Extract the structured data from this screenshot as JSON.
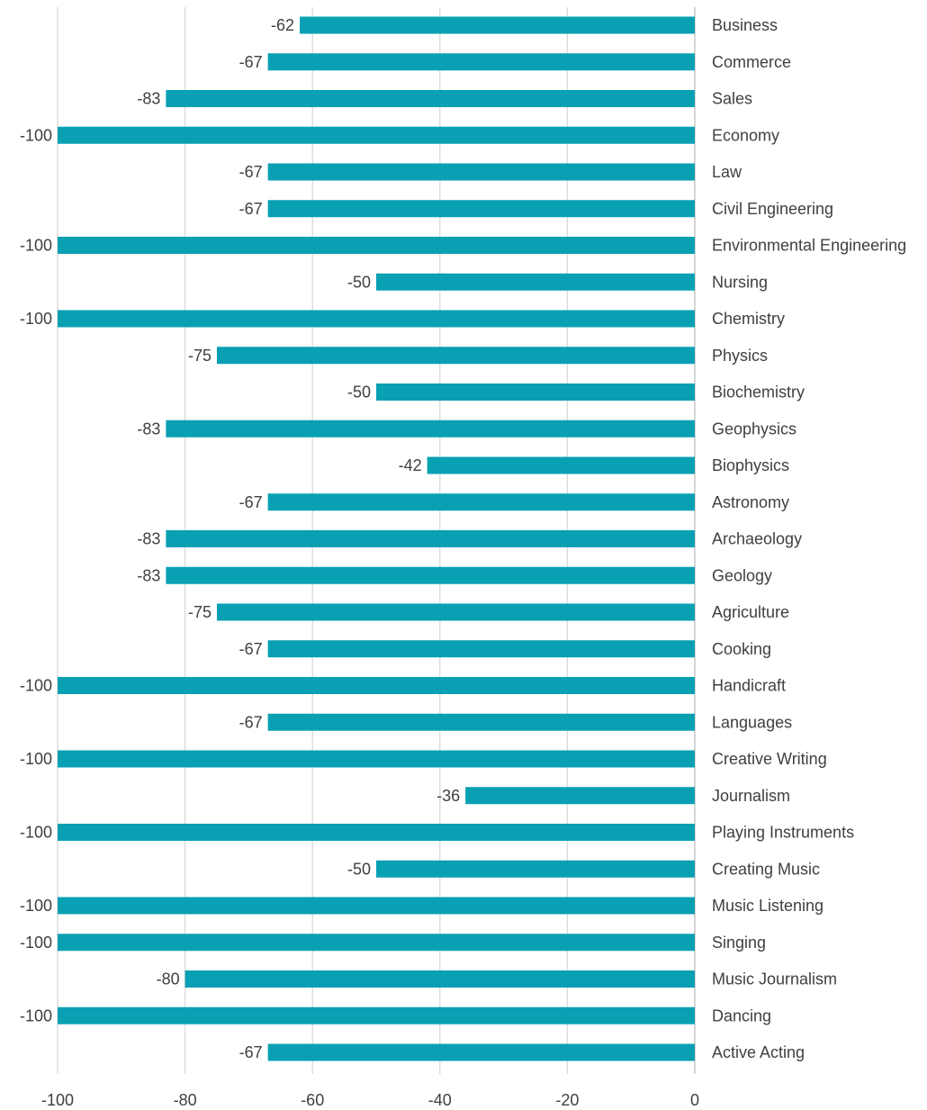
{
  "chart_data": {
    "type": "bar",
    "orientation": "horizontal",
    "title": "",
    "xlabel": "",
    "ylabel": "",
    "xlim": [
      -100,
      0
    ],
    "x_ticks": [
      "-100",
      "-80",
      "-60",
      "-40",
      "-20",
      "0"
    ],
    "grid": "vertical",
    "legend": "none",
    "bar_color": "#0aa0b4",
    "categories": [
      "Business",
      "Commerce",
      "Sales",
      "Economy",
      "Law",
      "Civil Engineering",
      "Environmental Engineering",
      "Nursing",
      "Chemistry",
      "Physics",
      "Biochemistry",
      "Geophysics",
      "Biophysics",
      "Astronomy",
      "Archaeology",
      "Geology",
      "Agriculture",
      "Cooking",
      "Handicraft",
      "Languages",
      "Creative Writing",
      "Journalism",
      "Playing Instruments",
      "Creating Music",
      "Music Listening",
      "Singing",
      "Music Journalism",
      "Dancing",
      "Active Acting"
    ],
    "values": [
      -62,
      -67,
      -83,
      -100,
      -67,
      -67,
      -100,
      -50,
      -100,
      -75,
      -50,
      -83,
      -42,
      -67,
      -83,
      -83,
      -75,
      -67,
      -100,
      -67,
      -100,
      -36,
      -100,
      -50,
      -100,
      -100,
      -80,
      -100,
      -67
    ]
  }
}
